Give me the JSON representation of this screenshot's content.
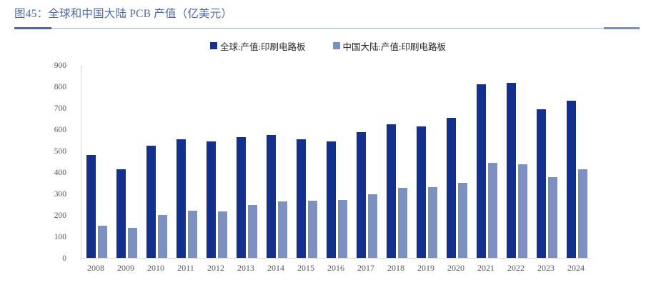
{
  "header": {
    "title": "图45：全球和中国大陆 PCB 产值（亿美元）"
  },
  "colors": {
    "title_text": "#4e6aa8",
    "rule_thin": "#a0b0d4",
    "rule_left_accent": "#4e6aa8",
    "rule_right_accent": "#7d90c2",
    "axis_line": "#d6d6d6",
    "tick_label": "#5a5a5a",
    "legend_text": "#262626",
    "series_global": "#11308f",
    "series_china": "#7d90c2"
  },
  "chart_data": {
    "type": "bar",
    "title": "全球和中国大陆 PCB 产值（亿美元）",
    "xlabel": "",
    "ylabel": "",
    "ylim": [
      0,
      900
    ],
    "ytick_step": 100,
    "grid": false,
    "legend_position": "top-center",
    "categories": [
      "2008",
      "2009",
      "2010",
      "2011",
      "2012",
      "2013",
      "2014",
      "2015",
      "2016",
      "2017",
      "2018",
      "2019",
      "2020",
      "2021",
      "2022",
      "2023",
      "2024"
    ],
    "series": [
      {
        "name": "全球:产值:印刷电路板",
        "color": "#11308f",
        "values": [
          481,
          412,
          525,
          554,
          543,
          562,
          574,
          553,
          542,
          588,
          624,
          613,
          652,
          809,
          817,
          695,
          735
        ]
      },
      {
        "name": "中国大陆:产值:印刷电路板",
        "color": "#7d90c2",
        "values": [
          150,
          140,
          200,
          220,
          216,
          246,
          262,
          267,
          271,
          297,
          327,
          329,
          350,
          442,
          436,
          378,
          412
        ]
      }
    ]
  }
}
